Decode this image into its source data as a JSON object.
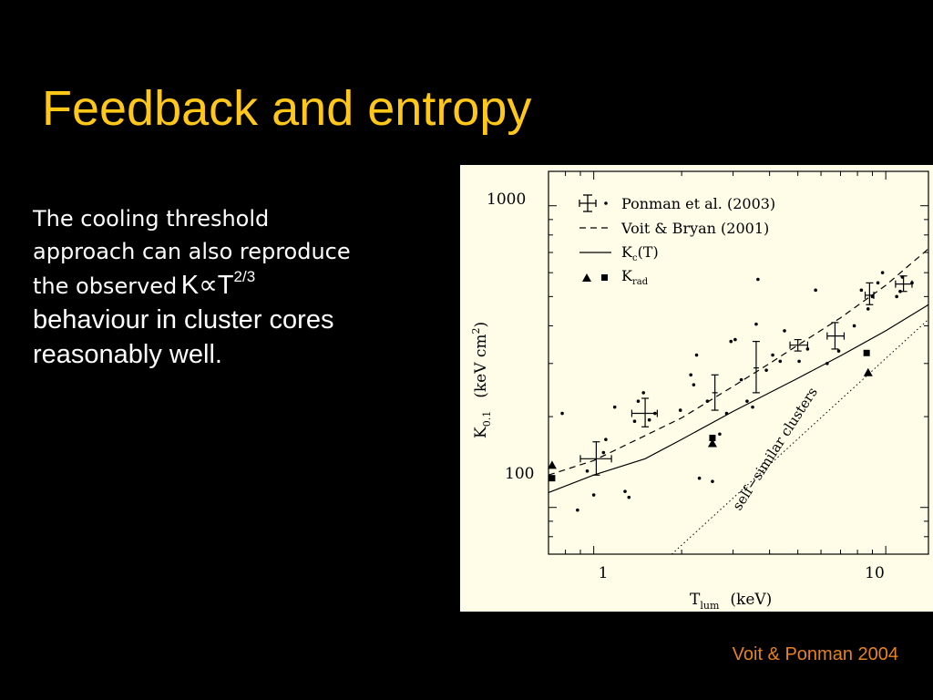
{
  "slide": {
    "title": "Feedback and entropy",
    "body_line1": "The cooling threshold",
    "body_line2": "approach can also reproduce",
    "body_line3_prefix": "the observed",
    "body_line3_expr_k": "K",
    "body_line3_expr_prop": "∝",
    "body_line3_expr_t": "T",
    "body_line3_expr_exp": "2/3",
    "body_line4": "behaviour in cluster cores",
    "body_line5": "reasonably well.",
    "credit": "Voit & Ponman 2004"
  },
  "colors": {
    "background": "#000000",
    "title": "#ffc819",
    "body_text": "#ffffff",
    "credit": "#e8821e",
    "figure_background": "#fffde8"
  },
  "chart_data": {
    "type": "scatter",
    "xlabel_main": "T",
    "xlabel_sub": "lum",
    "xlabel_unit": "(keV)",
    "ylabel_main": "K",
    "ylabel_sub": "0.1",
    "ylabel_unit": "(keV cm",
    "ylabel_unit_sup": "2",
    "ylabel_unit_close": ")",
    "x_scale": "log",
    "y_scale": "log",
    "xlim": [
      0.7,
      14
    ],
    "ylim": [
      70,
      1300
    ],
    "x_ticks": [
      {
        "value": 1,
        "label": "1"
      },
      {
        "value": 10,
        "label": "10"
      }
    ],
    "y_ticks": [
      {
        "value": 100,
        "label": "100"
      },
      {
        "value": 1000,
        "label": "1000"
      }
    ],
    "grid": false,
    "legend_position": "top-left",
    "legend": {
      "ponman": "Ponman et al. (2003)",
      "voit": "Voit & Bryan (2001)",
      "kc_main": "K",
      "kc_sub": "c",
      "kc_tail": "(T)",
      "krad_main": "K",
      "krad_sub": "rad"
    },
    "annotation": "self−similar clusters",
    "series": [
      {
        "name": "Ponman et al. (2003)",
        "kind": "scatter_with_errors",
        "points": [
          {
            "x": 1.02,
            "y": 145,
            "yerr_low": 128,
            "yerr_high": 165,
            "xerr_low": 0.9,
            "xerr_high": 1.15
          },
          {
            "x": 1.5,
            "y": 205,
            "yerr_low": 185,
            "yerr_high": 230,
            "xerr_low": 1.35,
            "xerr_high": 1.65
          },
          {
            "x": 2.6,
            "y": 240,
            "yerr_low": 210,
            "yerr_high": 275
          },
          {
            "x": 3.6,
            "y": 290,
            "yerr_low": 240,
            "yerr_high": 355
          },
          {
            "x": 5.0,
            "y": 345,
            "yerr_low": 330,
            "yerr_high": 360,
            "xerr_low": 4.7,
            "xerr_high": 5.4
          },
          {
            "x": 6.7,
            "y": 370,
            "yerr_low": 335,
            "yerr_high": 410,
            "xerr_low": 6.3,
            "xerr_high": 7.2
          },
          {
            "x": 8.8,
            "y": 505,
            "yerr_low": 470,
            "yerr_high": 555,
            "xerr_low": 8.5,
            "xerr_high": 9.1
          },
          {
            "x": 11.5,
            "y": 550,
            "yerr_low": 520,
            "yerr_high": 585,
            "xerr_low": 10.8,
            "xerr_high": 12.3
          }
        ],
        "dots": [
          [
            0.72,
            125
          ],
          [
            0.78,
            205
          ],
          [
            0.88,
            98
          ],
          [
            0.95,
            132
          ],
          [
            1.0,
            110
          ],
          [
            1.08,
            152
          ],
          [
            1.1,
            168
          ],
          [
            1.18,
            215
          ],
          [
            1.28,
            113
          ],
          [
            1.32,
            108
          ],
          [
            1.38,
            193
          ],
          [
            1.42,
            225
          ],
          [
            1.48,
            240
          ],
          [
            1.55,
            195
          ],
          [
            1.62,
            205
          ],
          [
            1.98,
            210
          ],
          [
            2.15,
            275
          ],
          [
            2.2,
            255
          ],
          [
            2.25,
            320
          ],
          [
            2.3,
            125
          ],
          [
            2.45,
            225
          ],
          [
            2.55,
            122
          ],
          [
            2.7,
            175
          ],
          [
            2.85,
            205
          ],
          [
            2.95,
            355
          ],
          [
            3.05,
            360
          ],
          [
            3.2,
            265
          ],
          [
            3.35,
            225
          ],
          [
            3.5,
            215
          ],
          [
            3.6,
            405
          ],
          [
            3.65,
            570
          ],
          [
            3.9,
            285
          ],
          [
            4.1,
            320
          ],
          [
            4.35,
            305
          ],
          [
            4.5,
            385
          ],
          [
            5.05,
            305
          ],
          [
            5.4,
            335
          ],
          [
            5.75,
            525
          ],
          [
            6.3,
            300
          ],
          [
            6.9,
            330
          ],
          [
            7.8,
            400
          ],
          [
            8.25,
            525
          ],
          [
            8.7,
            455
          ],
          [
            9.0,
            500
          ],
          [
            9.4,
            555
          ],
          [
            9.75,
            600
          ],
          [
            10.9,
            500
          ],
          [
            11.2,
            520
          ],
          [
            11.4,
            580
          ],
          [
            12.3,
            555
          ]
        ]
      },
      {
        "name": "Voit & Bryan (2001)",
        "kind": "dashed_line",
        "points": [
          [
            0.7,
            128
          ],
          [
            1.0,
            143
          ],
          [
            1.5,
            173
          ],
          [
            2.0,
            198
          ],
          [
            3.0,
            252
          ],
          [
            4.0,
            300
          ],
          [
            5.0,
            345
          ],
          [
            7.0,
            425
          ],
          [
            10.0,
            545
          ],
          [
            14.0,
            720
          ]
        ]
      },
      {
        "name": "Kc(T)",
        "kind": "solid_line",
        "points": [
          [
            0.7,
            112
          ],
          [
            1.0,
            128
          ],
          [
            1.5,
            145
          ],
          [
            2.0,
            168
          ],
          [
            3.0,
            208
          ],
          [
            4.0,
            240
          ],
          [
            5.0,
            268
          ],
          [
            7.0,
            318
          ],
          [
            10.0,
            385
          ],
          [
            14.0,
            470
          ]
        ]
      },
      {
        "name": "self-similar clusters",
        "kind": "dotted_line",
        "points": [
          [
            1.85,
            70
          ],
          [
            14.0,
            420
          ]
        ]
      },
      {
        "name": "Krad",
        "kind": "markers",
        "triangles": [
          [
            0.72,
            138
          ],
          [
            2.55,
            163
          ],
          [
            8.7,
            280
          ]
        ],
        "squares": [
          [
            0.72,
            125
          ],
          [
            2.55,
            170
          ],
          [
            8.6,
            325
          ]
        ]
      }
    ]
  }
}
